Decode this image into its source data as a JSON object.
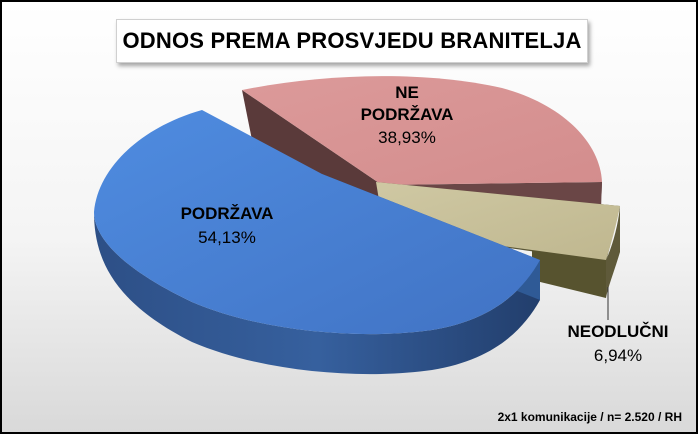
{
  "chart_data": {
    "type": "pie",
    "title": "ODNOS PREMA PROSVJEDU BRANITELJA",
    "slices": [
      {
        "label": "PODRŽAVA",
        "value": 54.13,
        "value_label": "54,13%",
        "color": "#4a86d4"
      },
      {
        "label": "NE PODRŽAVA",
        "value": 38.93,
        "value_label": "38,93%",
        "color": "#d99595"
      },
      {
        "label": "NEODLUČNI",
        "value": 6.94,
        "value_label": "6,94%",
        "color": "#c9c29c"
      }
    ],
    "style": "3d-exploded"
  },
  "footnote": "2x1 komunikacije / n= 2.520 / RH"
}
